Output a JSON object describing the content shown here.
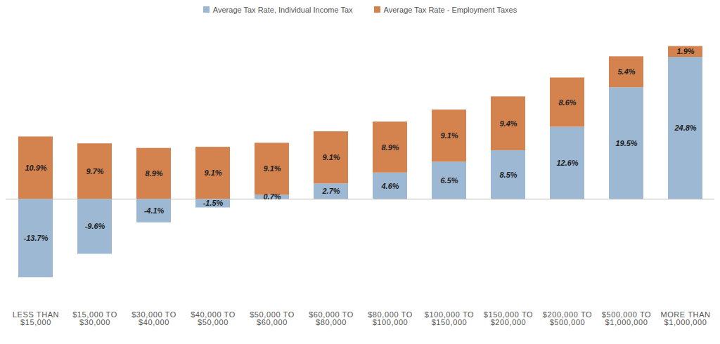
{
  "chart_data": {
    "type": "bar",
    "stacked": true,
    "data_labels": true,
    "tick_labels": "x",
    "legend": "top",
    "categories": [
      "LESS THAN\n$15,000",
      "$15,000 TO\n$30,000",
      "$30,000 TO\n$40,000",
      "$40,000 TO\n$50,000",
      "$50,000 TO\n$60,000",
      "$60,000 TO\n$80,000",
      "$80,000 TO\n$100,000",
      "$100,000 TO\n$150,000",
      "$150,000 TO\n$200,000",
      "$200,000 TO\n$500,000",
      "$500,000 TO\n$1,000,000",
      "MORE THAN\n$1,000,000"
    ],
    "ylim": [
      -18,
      28
    ],
    "series": [
      {
        "name": "Average Tax Rate, Individual Income Tax",
        "color": "#9db8d3",
        "values": [
          -13.7,
          -9.6,
          -4.1,
          -1.5,
          0.7,
          2.7,
          4.6,
          6.5,
          8.5,
          12.6,
          19.5,
          24.8
        ],
        "value_labels": [
          "-13.7%",
          "-9.6%",
          "-4.1%",
          "-1.5%",
          "0.7%",
          "2.7%",
          "4.6%",
          "6.5%",
          "8.5%",
          "12.6%",
          "19.5%",
          "24.8%"
        ]
      },
      {
        "name": "Average Tax Rate - Employment Taxes",
        "color": "#d4834f",
        "values": [
          10.9,
          9.7,
          8.9,
          9.1,
          9.1,
          9.1,
          8.9,
          9.1,
          9.4,
          8.6,
          5.4,
          1.9
        ],
        "value_labels": [
          "10.9%",
          "9.7%",
          "8.9%",
          "9.1%",
          "9.1%",
          "9.1%",
          "8.9%",
          "9.1%",
          "9.4%",
          "8.6%",
          "5.4%",
          "1.9%"
        ]
      }
    ]
  }
}
